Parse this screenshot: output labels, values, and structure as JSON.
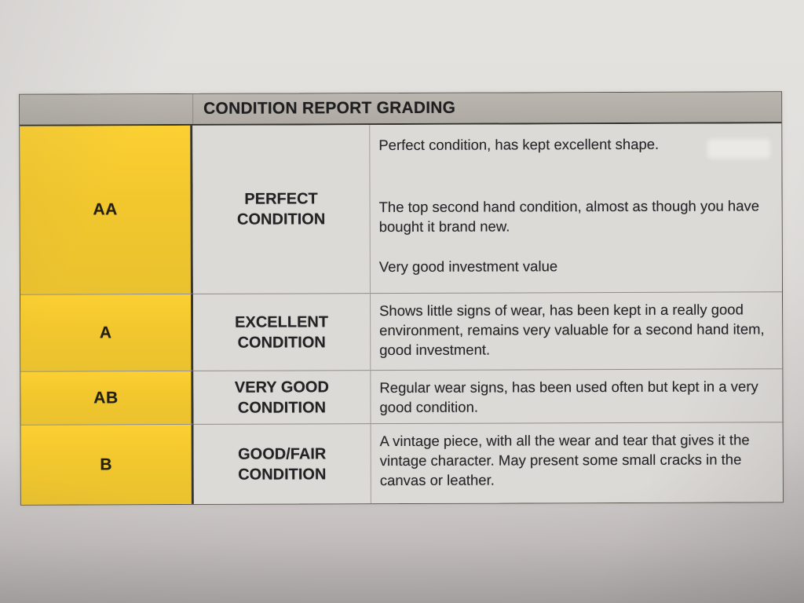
{
  "document": {
    "type": "photographed printed condition grading table",
    "paper_color": "#e2e0dd",
    "shadow_color": "#aaa5a5"
  },
  "table": {
    "title": "CONDITION REPORT GRADING",
    "colors": {
      "header_bg": "#b3afa8",
      "grade_column_bg": "#f2c72e",
      "cell_bg": "#dcdad6",
      "text": "#232326",
      "dark_border": "#37352f",
      "light_border": "#918d86"
    },
    "columns": [
      "grade",
      "condition",
      "description"
    ],
    "rows": [
      {
        "grade": "AA",
        "condition": "PERFECT CONDITION",
        "paragraphs": [
          "Perfect condition, has kept excellent shape.",
          "The top second hand condition, almost as though you have bought it brand new.",
          "Very good investment value"
        ]
      },
      {
        "grade": "A",
        "condition": "EXCELLENT CONDITION",
        "paragraphs": [
          "Shows little signs of wear, has been kept in a really good environment, remains very valuable for a second hand item, good investment."
        ]
      },
      {
        "grade": "AB",
        "condition": "VERY GOOD CONDITION",
        "paragraphs": [
          "Regular wear signs, has been used often but kept in a very good condition."
        ]
      },
      {
        "grade": "B",
        "condition": "GOOD/FAIR CONDITION",
        "paragraphs": [
          "A vintage piece, with all the wear and tear that gives it the vintage character. May present some small cracks in the canvas or leather."
        ]
      }
    ]
  }
}
